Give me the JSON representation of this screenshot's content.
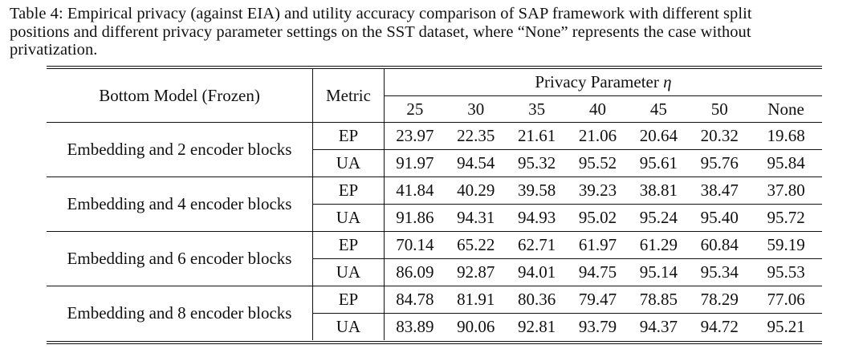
{
  "caption": {
    "line1": "Table 4: Empirical privacy (against EIA) and utility accuracy comparison of SAP framework with different split",
    "line2": "positions and different privacy parameter settings on the SST dataset, where “None” represents the case without",
    "line3": "privatization."
  },
  "table": {
    "header": {
      "model": "Bottom Model (Frozen)",
      "metric": "Metric",
      "privacy_label": "Privacy Parameter",
      "privacy_symbol": "η",
      "params": [
        "25",
        "30",
        "35",
        "40",
        "45",
        "50",
        "None"
      ]
    },
    "groups": [
      {
        "model": "Embedding and 2 encoder blocks",
        "ep_label": "EP",
        "ua_label": "UA",
        "ep": [
          "23.97",
          "22.35",
          "21.61",
          "21.06",
          "20.64",
          "20.32",
          "19.68"
        ],
        "ua": [
          "91.97",
          "94.54",
          "95.32",
          "95.52",
          "95.61",
          "95.76",
          "95.84"
        ]
      },
      {
        "model": "Embedding and 4 encoder blocks",
        "ep_label": "EP",
        "ua_label": "UA",
        "ep": [
          "41.84",
          "40.29",
          "39.58",
          "39.23",
          "38.81",
          "38.47",
          "37.80"
        ],
        "ua": [
          "91.86",
          "94.31",
          "94.93",
          "95.02",
          "95.24",
          "95.40",
          "95.72"
        ]
      },
      {
        "model": "Embedding and 6 encoder blocks",
        "ep_label": "EP",
        "ua_label": "UA",
        "ep": [
          "70.14",
          "65.22",
          "62.71",
          "61.97",
          "61.29",
          "60.84",
          "59.19"
        ],
        "ua": [
          "86.09",
          "92.87",
          "94.01",
          "94.75",
          "95.14",
          "95.34",
          "95.53"
        ]
      },
      {
        "model": "Embedding and 8 encoder blocks",
        "ep_label": "EP",
        "ua_label": "UA",
        "ep": [
          "84.78",
          "81.91",
          "80.36",
          "79.47",
          "78.85",
          "78.29",
          "77.06"
        ],
        "ua": [
          "83.89",
          "90.06",
          "92.81",
          "93.79",
          "94.37",
          "94.72",
          "95.21"
        ]
      }
    ]
  }
}
